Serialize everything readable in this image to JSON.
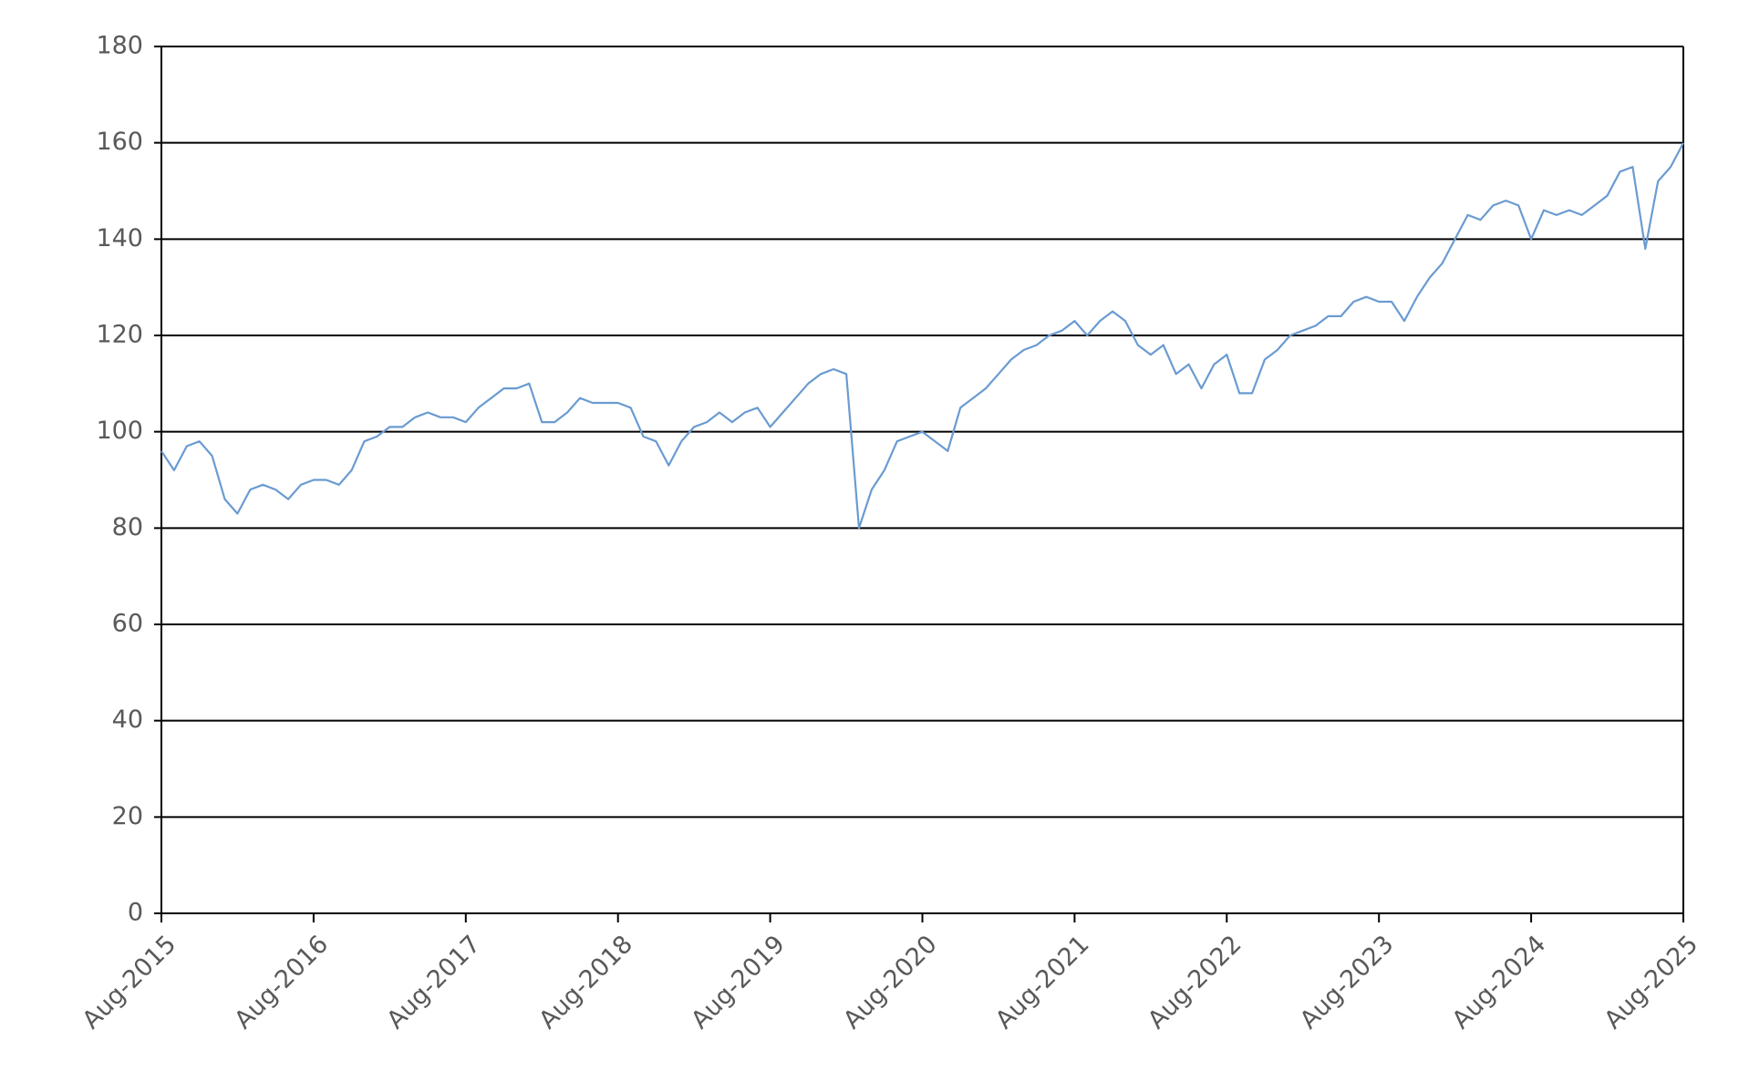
{
  "chart_data": {
    "type": "line",
    "x": [
      "2015-08",
      "2015-09",
      "2015-10",
      "2015-11",
      "2015-12",
      "2016-01",
      "2016-02",
      "2016-03",
      "2016-04",
      "2016-05",
      "2016-06",
      "2016-07",
      "2016-08",
      "2016-09",
      "2016-10",
      "2016-11",
      "2016-12",
      "2017-01",
      "2017-02",
      "2017-03",
      "2017-04",
      "2017-05",
      "2017-06",
      "2017-07",
      "2017-08",
      "2017-09",
      "2017-10",
      "2017-11",
      "2017-12",
      "2018-01",
      "2018-02",
      "2018-03",
      "2018-04",
      "2018-05",
      "2018-06",
      "2018-07",
      "2018-08",
      "2018-09",
      "2018-10",
      "2018-11",
      "2018-12",
      "2019-01",
      "2019-02",
      "2019-03",
      "2019-04",
      "2019-05",
      "2019-06",
      "2019-07",
      "2019-08",
      "2019-09",
      "2019-10",
      "2019-11",
      "2019-12",
      "2020-01",
      "2020-02",
      "2020-03",
      "2020-04",
      "2020-05",
      "2020-06",
      "2020-07",
      "2020-08",
      "2020-09",
      "2020-10",
      "2020-11",
      "2020-12",
      "2021-01",
      "2021-02",
      "2021-03",
      "2021-04",
      "2021-05",
      "2021-06",
      "2021-07",
      "2021-08",
      "2021-09",
      "2021-10",
      "2021-11",
      "2021-12",
      "2022-01",
      "2022-02",
      "2022-03",
      "2022-04",
      "2022-05",
      "2022-06",
      "2022-07",
      "2022-08",
      "2022-09",
      "2022-10",
      "2022-11",
      "2022-12",
      "2023-01",
      "2023-02",
      "2023-03",
      "2023-04",
      "2023-05",
      "2023-06",
      "2023-07",
      "2023-08",
      "2023-09",
      "2023-10",
      "2023-11",
      "2023-12",
      "2024-01",
      "2024-02",
      "2024-03",
      "2024-04",
      "2024-05",
      "2024-06",
      "2024-07",
      "2024-08",
      "2024-09",
      "2024-10",
      "2024-11",
      "2024-12",
      "2025-01",
      "2025-02",
      "2025-03",
      "2025-04",
      "2025-05",
      "2025-06",
      "2025-07",
      "2025-08"
    ],
    "series": [
      {
        "color": "#6a9bd1",
        "values": [
          96,
          92,
          97,
          98,
          95,
          86,
          83,
          88,
          89,
          88,
          86,
          89,
          90,
          90,
          89,
          92,
          98,
          99,
          101,
          101,
          103,
          104,
          103,
          103,
          102,
          105,
          107,
          109,
          109,
          110,
          102,
          102,
          104,
          107,
          106,
          106,
          106,
          105,
          99,
          98,
          93,
          98,
          101,
          102,
          104,
          102,
          104,
          105,
          101,
          104,
          107,
          110,
          112,
          113,
          112,
          80,
          88,
          92,
          98,
          99,
          100,
          98,
          96,
          105,
          107,
          109,
          112,
          115,
          117,
          118,
          120,
          121,
          123,
          120,
          123,
          125,
          123,
          118,
          116,
          118,
          112,
          114,
          109,
          114,
          116,
          108,
          108,
          115,
          117,
          120,
          121,
          122,
          124,
          124,
          127,
          128,
          127,
          127,
          123,
          128,
          132,
          135,
          140,
          145,
          144,
          147,
          148,
          147,
          140,
          146,
          145,
          146,
          145,
          147,
          149,
          154,
          155,
          138,
          152,
          155,
          160
        ]
      }
    ],
    "xlim": [
      "2015-08",
      "2025-08"
    ],
    "xticks": [
      {
        "value": "2015-08",
        "label": "Aug-2015"
      },
      {
        "value": "2016-08",
        "label": "Aug-2016"
      },
      {
        "value": "2017-08",
        "label": "Aug-2017"
      },
      {
        "value": "2018-08",
        "label": "Aug-2018"
      },
      {
        "value": "2019-08",
        "label": "Aug-2019"
      },
      {
        "value": "2020-08",
        "label": "Aug-2020"
      },
      {
        "value": "2021-08",
        "label": "Aug-2021"
      },
      {
        "value": "2022-08",
        "label": "Aug-2022"
      },
      {
        "value": "2023-08",
        "label": "Aug-2023"
      },
      {
        "value": "2024-08",
        "label": "Aug-2024"
      },
      {
        "value": "2025-08",
        "label": "Aug-2025"
      }
    ],
    "ylim": [
      0,
      180
    ],
    "yticks": [
      0,
      20,
      40,
      60,
      80,
      100,
      120,
      140,
      160,
      180
    ],
    "grid": true
  }
}
